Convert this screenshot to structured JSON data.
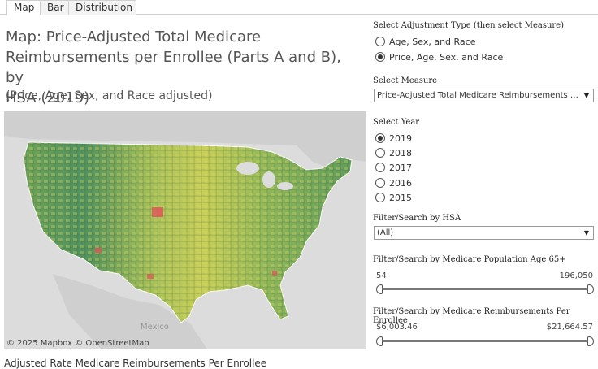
{
  "tabs": [
    {
      "label": "Map",
      "active": true
    },
    {
      "label": "Bar",
      "active": false
    },
    {
      "label": "Distribution",
      "active": false
    }
  ],
  "title": {
    "line1": "Map:  Price-Adjusted Total Medicare",
    "line2": "Reimbursements per Enrollee (Parts A and B), by",
    "line3": "HSA (2019)",
    "subtitle": "(Price, Age, Sex, and Race adjusted)"
  },
  "map": {
    "label_mexico": "Mexico",
    "attribution": "© 2025 Mapbox  © OpenStreetMap",
    "colors": {
      "low": "#3e8a5c",
      "mid": "#7fae59",
      "high": "#d8d65a",
      "peak": "#e4505a",
      "land": "#cfcfcf",
      "water": "#dcdcdc"
    }
  },
  "bottom_label": "Adjusted Rate Medicare Reimbursements Per Enrollee",
  "adjustment": {
    "heading": "Select Adjustment Type (then select Measure)",
    "options": [
      {
        "label": "Age, Sex, and Race",
        "selected": false
      },
      {
        "label": "Price, Age, Sex, and Race",
        "selected": true
      }
    ]
  },
  "measure": {
    "heading": "Select Measure",
    "value": "Price-Adjusted Total Medicare Reimbursements per Enrollee (Parts A and B)"
  },
  "year": {
    "heading": "Select Year",
    "options": [
      {
        "label": "2019",
        "selected": true
      },
      {
        "label": "2018",
        "selected": false
      },
      {
        "label": "2017",
        "selected": false
      },
      {
        "label": "2016",
        "selected": false
      },
      {
        "label": "2015",
        "selected": false
      }
    ]
  },
  "hsa": {
    "heading": "Filter/Search by HSA",
    "value": "(All)"
  },
  "population": {
    "heading": "Filter/Search by Medicare Population Age 65+",
    "min": "54",
    "max": "196,050"
  },
  "reimbursement": {
    "heading": "Filter/Search by Medicare Reimbursements Per Enrollee",
    "min": "$6,003.46",
    "max": "$21,664.57"
  }
}
